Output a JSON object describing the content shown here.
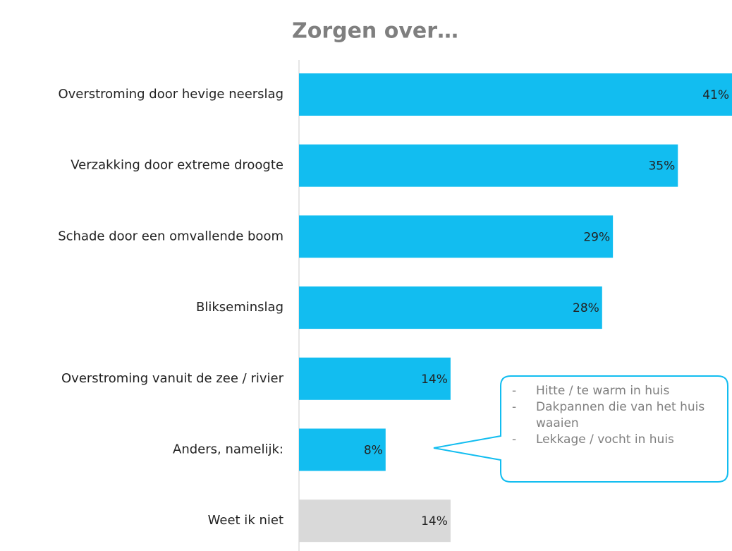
{
  "chart_data": {
    "type": "bar",
    "orientation": "horizontal",
    "title": "Zorgen over…",
    "categories": [
      "Overstroming door hevige neerslag",
      "Verzakking door extreme droogte",
      "Schade door een omvallende boom",
      "Blikseminslag",
      "Overstroming vanuit de zee / rivier",
      "Anders, namelijk:",
      "Weet ik niet"
    ],
    "values": [
      41,
      35,
      29,
      28,
      14,
      8,
      14
    ],
    "value_labels": [
      "41%",
      "35%",
      "29%",
      "28%",
      "14%",
      "8%",
      "14%"
    ],
    "colors": [
      "#12bdf0",
      "#12bdf0",
      "#12bdf0",
      "#12bdf0",
      "#12bdf0",
      "#12bdf0",
      "#d9d9d9"
    ],
    "xlim": [
      0,
      40
    ],
    "annotation": {
      "items": [
        "Hitte / te warm in huis",
        "Dakpannen die van het huis waaien",
        "Lekkage / vocht in huis"
      ]
    }
  }
}
